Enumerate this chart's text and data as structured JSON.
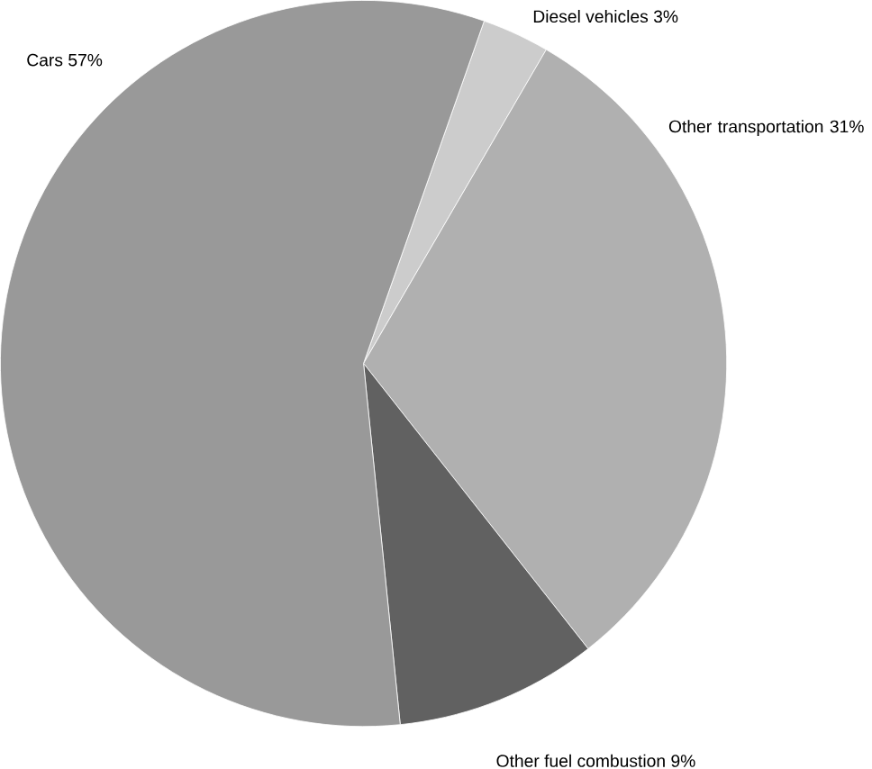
{
  "chart_data": {
    "type": "pie",
    "categories": [
      "Diesel vehicles",
      "Other transportation",
      "Other fuel combustion",
      "Cars"
    ],
    "values": [
      3,
      31,
      9,
      57
    ],
    "value_labels": [
      "3%",
      "31%",
      "9%",
      "57%"
    ],
    "colors": [
      "#cccccc",
      "#b0b0b0",
      "#616161",
      "#999999"
    ]
  }
}
